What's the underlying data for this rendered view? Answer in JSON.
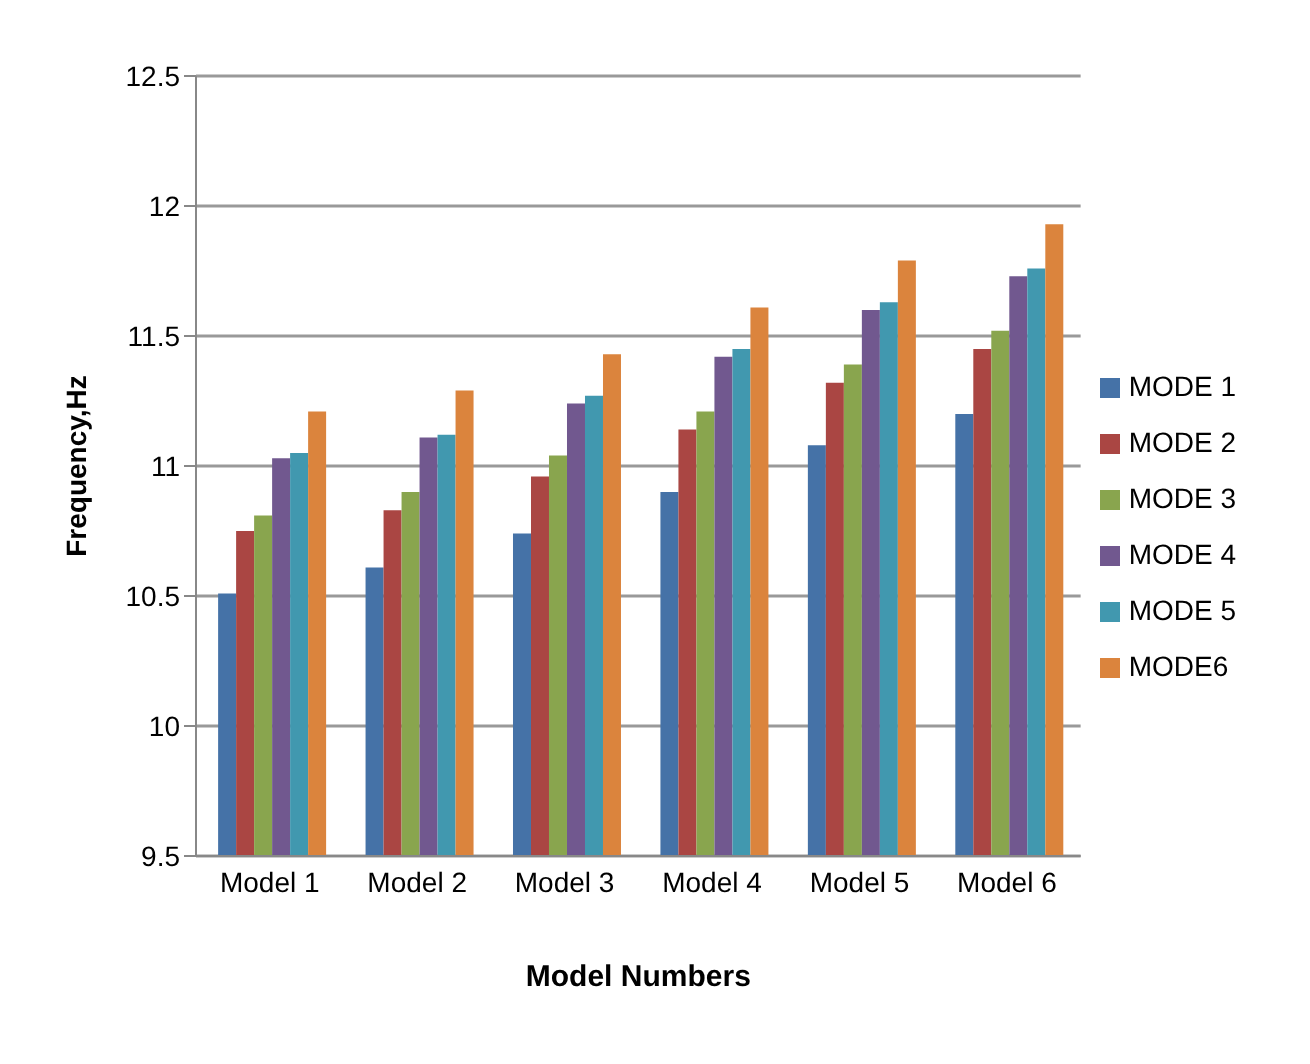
{
  "chart_data": {
    "type": "bar",
    "xlabel": "Model Numbers",
    "ylabel": "Frequency,Hz",
    "categories": [
      "Model 1",
      "Model 2",
      "Model 3",
      "Model 4",
      "Model 5",
      "Model 6"
    ],
    "series": [
      {
        "name": "MODE 1",
        "color": "#4572a7",
        "values": [
          10.51,
          10.61,
          10.74,
          10.9,
          11.08,
          11.2
        ]
      },
      {
        "name": "MODE 2",
        "color": "#aa4643",
        "values": [
          10.75,
          10.83,
          10.96,
          11.14,
          11.32,
          11.45
        ]
      },
      {
        "name": "MODE 3",
        "color": "#89a54e",
        "values": [
          10.81,
          10.9,
          11.04,
          11.21,
          11.39,
          11.52
        ]
      },
      {
        "name": "MODE 4",
        "color": "#71588f",
        "values": [
          11.03,
          11.11,
          11.24,
          11.42,
          11.6,
          11.73
        ]
      },
      {
        "name": "MODE 5",
        "color": "#4198af",
        "values": [
          11.05,
          11.12,
          11.27,
          11.45,
          11.63,
          11.76
        ]
      },
      {
        "name": "MODE6",
        "color": "#db843d",
        "values": [
          11.21,
          11.29,
          11.43,
          11.61,
          11.79,
          11.93
        ]
      }
    ],
    "ylim": [
      9.5,
      12.5
    ],
    "yticks": [
      9.5,
      10,
      10.5,
      11,
      11.5,
      12,
      12.5
    ],
    "grid": "y",
    "legend": "right"
  }
}
